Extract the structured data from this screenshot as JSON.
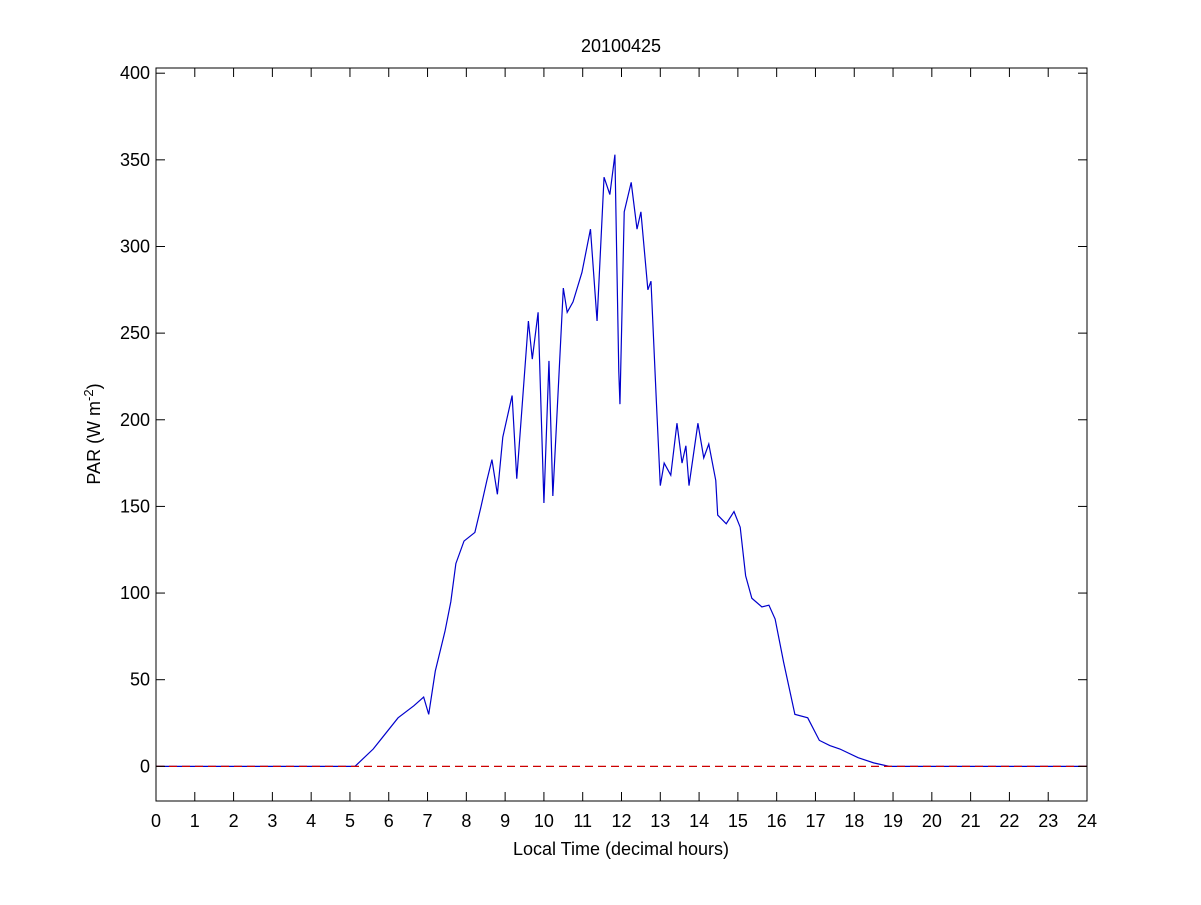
{
  "chart_data": {
    "type": "line",
    "title": "20100425",
    "xlabel": "Local Time (decimal hours)",
    "ylabel": [
      "PAR (W m",
      "-2",
      ")"
    ],
    "xlim": [
      0,
      24
    ],
    "xticks": [
      0,
      1,
      2,
      3,
      4,
      5,
      6,
      7,
      8,
      9,
      10,
      11,
      12,
      13,
      14,
      15,
      16,
      17,
      18,
      19,
      20,
      21,
      22,
      23,
      24
    ],
    "ylim": [
      -20,
      403
    ],
    "yticks": [
      0,
      50,
      100,
      150,
      200,
      250,
      300,
      350,
      400
    ],
    "series": [
      {
        "color": "#0000cc",
        "style": "solid",
        "x": [
          0,
          5.13,
          5.6,
          6.24,
          6.65,
          6.9,
          7.03,
          7.2,
          7.45,
          7.6,
          7.73,
          7.94,
          8.22,
          8.38,
          8.53,
          8.66,
          8.8,
          8.94,
          9.18,
          9.3,
          9.6,
          9.7,
          9.85,
          10.0,
          10.13,
          10.23,
          10.33,
          10.5,
          10.6,
          10.75,
          10.98,
          11.2,
          11.37,
          11.55,
          11.7,
          11.83,
          11.93,
          11.96,
          12.07,
          12.25,
          12.4,
          12.5,
          12.68,
          12.76,
          12.9,
          13.0,
          13.1,
          13.27,
          13.43,
          13.56,
          13.66,
          13.74,
          13.97,
          14.12,
          14.25,
          14.43,
          14.48,
          14.7,
          14.9,
          15.06,
          15.2,
          15.36,
          15.62,
          15.8,
          15.96,
          16.18,
          16.47,
          16.8,
          17.1,
          17.37,
          17.63,
          18.1,
          18.5,
          18.9,
          24
        ],
        "values": [
          0,
          0,
          10,
          28,
          35,
          40,
          30,
          55,
          78,
          95,
          117,
          130,
          135,
          150,
          165,
          177,
          157,
          190,
          214,
          166,
          257,
          235,
          262,
          152,
          234,
          156,
          200,
          276,
          262,
          268,
          285,
          310,
          257,
          340,
          330,
          353,
          228,
          209,
          320,
          337,
          310,
          320,
          275,
          280,
          210,
          162,
          175,
          168,
          198,
          175,
          185,
          162,
          198,
          178,
          186,
          165,
          145,
          140,
          147,
          138,
          110,
          97,
          92,
          93,
          85,
          60,
          30,
          28,
          15,
          12,
          10,
          5,
          2,
          0,
          0
        ]
      },
      {
        "color": "#cc0000",
        "style": "dashed",
        "x": [
          0,
          24
        ],
        "values": [
          0,
          0
        ]
      }
    ]
  }
}
